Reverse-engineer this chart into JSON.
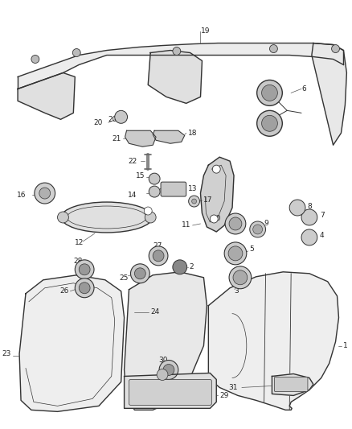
{
  "bg_color": "#ffffff",
  "line_color": "#333333",
  "text_color": "#222222",
  "figsize": [
    4.38,
    5.33
  ],
  "dpi": 100
}
